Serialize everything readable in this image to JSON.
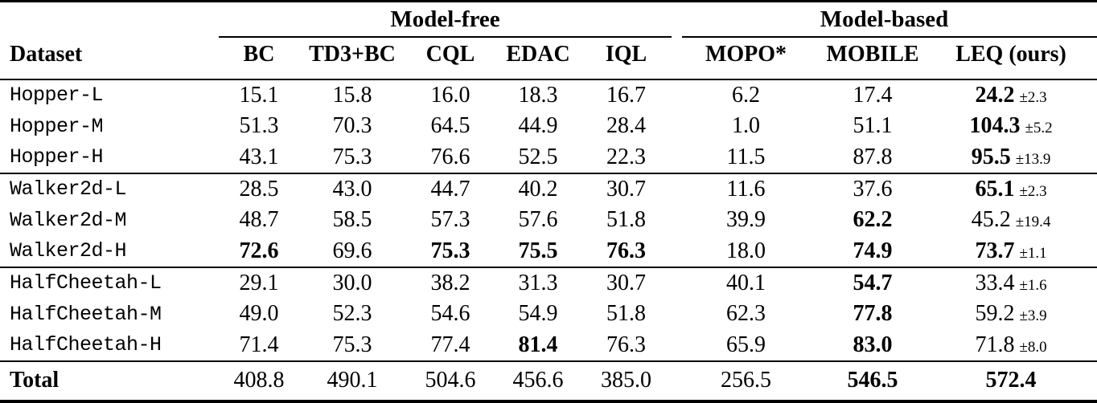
{
  "page": {
    "background": "#ffffff",
    "text_color": "#000000"
  },
  "table": {
    "group_headers": [
      {
        "label": "Model-free",
        "span": 5
      },
      {
        "label": "Model-based",
        "span": 3
      }
    ],
    "columns": [
      {
        "label": "Dataset"
      },
      {
        "label": "BC"
      },
      {
        "label": "TD3+BC"
      },
      {
        "label": "CQL"
      },
      {
        "label": "EDAC"
      },
      {
        "label": "IQL"
      },
      {
        "label": "MOPO*"
      },
      {
        "label": "MOBILE"
      },
      {
        "label": "LEQ (ours)"
      }
    ],
    "groups": [
      {
        "rows": [
          {
            "dataset": "Hopper-L",
            "cells": [
              {
                "v": "15.1"
              },
              {
                "v": "15.8"
              },
              {
                "v": "16.0"
              },
              {
                "v": "18.3"
              },
              {
                "v": "16.7"
              },
              {
                "v": "6.2"
              },
              {
                "v": "17.4"
              }
            ],
            "leq": {
              "v": "24.2",
              "std": "±2.3",
              "b": true
            }
          },
          {
            "dataset": "Hopper-M",
            "cells": [
              {
                "v": "51.3"
              },
              {
                "v": "70.3"
              },
              {
                "v": "64.5"
              },
              {
                "v": "44.9"
              },
              {
                "v": "28.4"
              },
              {
                "v": "1.0"
              },
              {
                "v": "51.1"
              }
            ],
            "leq": {
              "v": "104.3",
              "std": "±5.2",
              "b": true
            }
          },
          {
            "dataset": "Hopper-H",
            "cells": [
              {
                "v": "43.1"
              },
              {
                "v": "75.3"
              },
              {
                "v": "76.6"
              },
              {
                "v": "52.5"
              },
              {
                "v": "22.3"
              },
              {
                "v": "11.5"
              },
              {
                "v": "87.8"
              }
            ],
            "leq": {
              "v": "95.5",
              "std": "±13.9",
              "b": true
            }
          }
        ]
      },
      {
        "rows": [
          {
            "dataset": "Walker2d-L",
            "cells": [
              {
                "v": "28.5"
              },
              {
                "v": "43.0"
              },
              {
                "v": "44.7"
              },
              {
                "v": "40.2"
              },
              {
                "v": "30.7"
              },
              {
                "v": "11.6"
              },
              {
                "v": "37.6"
              }
            ],
            "leq": {
              "v": "65.1",
              "std": "±2.3",
              "b": true
            }
          },
          {
            "dataset": "Walker2d-M",
            "cells": [
              {
                "v": "48.7"
              },
              {
                "v": "58.5"
              },
              {
                "v": "57.3"
              },
              {
                "v": "57.6"
              },
              {
                "v": "51.8"
              },
              {
                "v": "39.9"
              },
              {
                "v": "62.2",
                "b": true
              }
            ],
            "leq": {
              "v": "45.2",
              "std": "±19.4",
              "b": false
            }
          },
          {
            "dataset": "Walker2d-H",
            "cells": [
              {
                "v": "72.6",
                "b": true
              },
              {
                "v": "69.6"
              },
              {
                "v": "75.3",
                "b": true
              },
              {
                "v": "75.5",
                "b": true
              },
              {
                "v": "76.3",
                "b": true
              },
              {
                "v": "18.0"
              },
              {
                "v": "74.9",
                "b": true
              }
            ],
            "leq": {
              "v": "73.7",
              "std": "±1.1",
              "b": true
            }
          }
        ]
      },
      {
        "rows": [
          {
            "dataset": "HalfCheetah-L",
            "cells": [
              {
                "v": "29.1"
              },
              {
                "v": "30.0"
              },
              {
                "v": "38.2"
              },
              {
                "v": "31.3"
              },
              {
                "v": "30.7"
              },
              {
                "v": "40.1"
              },
              {
                "v": "54.7",
                "b": true
              }
            ],
            "leq": {
              "v": "33.4",
              "std": "±1.6",
              "b": false
            }
          },
          {
            "dataset": "HalfCheetah-M",
            "cells": [
              {
                "v": "49.0"
              },
              {
                "v": "52.3"
              },
              {
                "v": "54.6"
              },
              {
                "v": "54.9"
              },
              {
                "v": "51.8"
              },
              {
                "v": "62.3"
              },
              {
                "v": "77.8",
                "b": true
              }
            ],
            "leq": {
              "v": "59.2",
              "std": "±3.9",
              "b": false
            }
          },
          {
            "dataset": "HalfCheetah-H",
            "cells": [
              {
                "v": "71.4"
              },
              {
                "v": "75.3"
              },
              {
                "v": "77.4"
              },
              {
                "v": "81.4",
                "b": true
              },
              {
                "v": "76.3"
              },
              {
                "v": "65.9"
              },
              {
                "v": "83.0",
                "b": true
              }
            ],
            "leq": {
              "v": "71.8",
              "std": "±8.0",
              "b": false
            }
          }
        ]
      }
    ],
    "total": {
      "label": "Total",
      "cells": [
        {
          "v": "408.8"
        },
        {
          "v": "490.1"
        },
        {
          "v": "504.6"
        },
        {
          "v": "456.6"
        },
        {
          "v": "385.0"
        },
        {
          "v": "256.5"
        },
        {
          "v": "546.5",
          "b": true
        }
      ],
      "leq": {
        "v": "572.4",
        "b": true
      }
    }
  }
}
